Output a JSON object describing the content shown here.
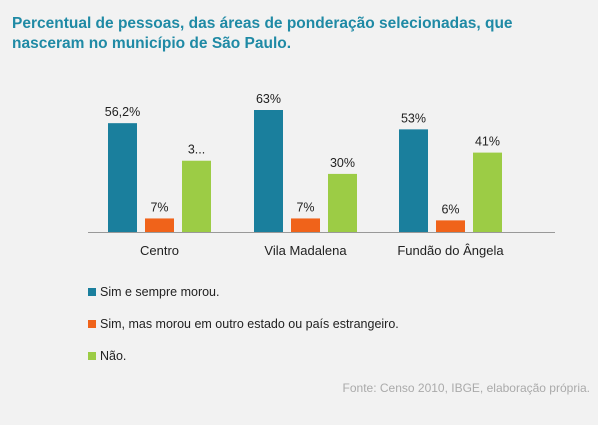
{
  "chart_data": {
    "type": "bar",
    "title": "Percentual de pessoas, das áreas de ponderação selecionadas, que nasceram no município de São Paulo.",
    "categories": [
      "Centro",
      "Vila Madalena",
      "Fundão do Ângela"
    ],
    "series": [
      {
        "name": "Sim e sempre morou.",
        "color": "#1a7f9d",
        "values": [
          56.2,
          63,
          53
        ],
        "labels": [
          "56,2%",
          "63%",
          "53%"
        ]
      },
      {
        "name": "Sim, mas morou em outro estado ou país estrangeiro.",
        "color": "#f0631a",
        "values": [
          7,
          7,
          6
        ],
        "labels": [
          "7%",
          "7%",
          "6%"
        ]
      },
      {
        "name": "Não.",
        "color": "#9ccc45",
        "values": [
          36.8,
          30,
          41
        ],
        "labels": [
          "3...",
          "30%",
          "41%"
        ]
      }
    ],
    "ylim": [
      0,
      70
    ],
    "grid": false,
    "legend_position": "bottom-left"
  },
  "source": "Fonte: Censo 2010, IBGE,  elaboração própria."
}
